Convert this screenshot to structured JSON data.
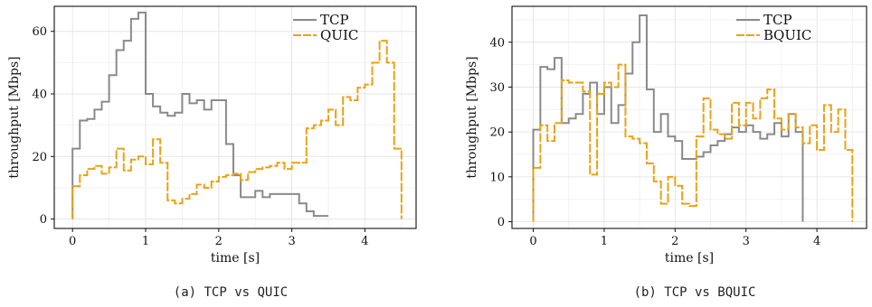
{
  "chart_data": [
    {
      "type": "line",
      "caption": "(a) TCP vs QUIC",
      "xlabel": "time [s]",
      "ylabel": "throughput [Mbps]",
      "xlim": [
        -0.25,
        4.7
      ],
      "ylim": [
        -3,
        68
      ],
      "xticks": [
        0,
        1,
        2,
        3,
        4
      ],
      "yticks": [
        0,
        20,
        40,
        60
      ],
      "grid": true,
      "step": true,
      "legend_position": "top-right",
      "series": [
        {
          "name": "TCP",
          "color": "#8a8a8a",
          "dash": "solid",
          "x": [
            0,
            0.1,
            0.2,
            0.3,
            0.4,
            0.5,
            0.6,
            0.7,
            0.8,
            0.9,
            1.0,
            1.1,
            1.2,
            1.3,
            1.4,
            1.5,
            1.6,
            1.7,
            1.8,
            1.9,
            2.0,
            2.1,
            2.2,
            2.3,
            2.4,
            2.5,
            2.6,
            2.7,
            2.8,
            2.9,
            3.0,
            3.1,
            3.2,
            3.3,
            3.4
          ],
          "y": [
            22.5,
            31.5,
            32,
            35,
            37.5,
            46,
            54,
            57,
            64,
            66,
            40,
            36,
            34,
            33,
            34,
            40,
            37,
            38,
            35,
            38,
            38,
            24,
            14,
            7,
            7,
            9,
            7,
            8,
            8,
            8,
            8,
            5,
            2.5,
            1,
            1
          ]
        },
        {
          "name": "QUIC",
          "color": "#e8a317",
          "dash": "dashed",
          "x": [
            0,
            0.1,
            0.2,
            0.3,
            0.4,
            0.5,
            0.6,
            0.7,
            0.8,
            0.9,
            1.0,
            1.1,
            1.2,
            1.3,
            1.4,
            1.5,
            1.6,
            1.7,
            1.8,
            1.9,
            2.0,
            2.1,
            2.2,
            2.3,
            2.4,
            2.5,
            2.6,
            2.7,
            2.8,
            2.9,
            3.0,
            3.1,
            3.2,
            3.3,
            3.4,
            3.5,
            3.6,
            3.7,
            3.8,
            3.9,
            4.0,
            4.1,
            4.2,
            4.3,
            4.4,
            4.5
          ],
          "y": [
            10.5,
            14,
            16,
            17,
            14.5,
            16.5,
            22.5,
            15.5,
            19,
            20,
            17.5,
            25.5,
            18,
            6,
            5,
            6.5,
            8,
            11,
            10,
            12,
            13.5,
            14,
            14.5,
            12.5,
            15,
            16,
            16.5,
            17,
            18,
            16,
            18,
            18,
            29,
            30,
            31.5,
            35,
            30,
            39,
            38,
            42,
            43,
            50,
            57,
            50,
            22.5,
            0
          ]
        }
      ]
    },
    {
      "type": "line",
      "caption": "(b) TCP vs BQUIC",
      "xlabel": "time [s]",
      "ylabel": "throughput [Mbps]",
      "xlim": [
        -0.3,
        4.7
      ],
      "ylim": [
        -1.5,
        48
      ],
      "xticks": [
        0,
        1,
        2,
        3,
        4
      ],
      "yticks": [
        0,
        10,
        20,
        30,
        40
      ],
      "grid": true,
      "step": true,
      "legend_position": "top-right",
      "series": [
        {
          "name": "TCP",
          "color": "#8a8a8a",
          "dash": "solid",
          "x": [
            0,
            0.1,
            0.2,
            0.3,
            0.4,
            0.5,
            0.6,
            0.7,
            0.8,
            0.9,
            1.0,
            1.1,
            1.2,
            1.3,
            1.4,
            1.5,
            1.6,
            1.7,
            1.8,
            1.9,
            2.0,
            2.1,
            2.2,
            2.3,
            2.4,
            2.5,
            2.6,
            2.7,
            2.8,
            2.9,
            3.0,
            3.1,
            3.2,
            3.3,
            3.4,
            3.5,
            3.6,
            3.7,
            3.8
          ],
          "y": [
            20.5,
            34.5,
            34,
            36.5,
            22,
            23,
            24,
            28.5,
            31,
            24,
            30,
            22,
            26,
            33,
            40,
            46,
            29.5,
            20,
            24,
            19,
            18,
            14,
            14,
            14.5,
            15.5,
            17,
            18,
            19.5,
            21,
            20,
            21.5,
            20,
            18.5,
            19.5,
            22,
            19,
            24,
            20,
            0
          ]
        },
        {
          "name": "BQUIC",
          "color": "#e8a317",
          "dash": "dashed",
          "x": [
            0,
            0.1,
            0.2,
            0.3,
            0.4,
            0.5,
            0.6,
            0.7,
            0.8,
            0.9,
            1.0,
            1.1,
            1.2,
            1.3,
            1.4,
            1.5,
            1.6,
            1.7,
            1.8,
            1.9,
            2.0,
            2.1,
            2.2,
            2.3,
            2.4,
            2.5,
            2.6,
            2.7,
            2.8,
            2.9,
            3.0,
            3.1,
            3.2,
            3.3,
            3.4,
            3.5,
            3.6,
            3.7,
            3.8,
            3.9,
            4.0,
            4.1,
            4.2,
            4.3,
            4.4,
            4.5
          ],
          "y": [
            12,
            21.5,
            18,
            22,
            31.5,
            31,
            31,
            29,
            10.5,
            28.5,
            31,
            30,
            35,
            19,
            18.5,
            17.5,
            13,
            9,
            4,
            10,
            8,
            4,
            3.5,
            19,
            27.5,
            20.5,
            19.5,
            18.5,
            26.5,
            21.5,
            26.5,
            23,
            27.5,
            29.5,
            23,
            20.5,
            24,
            21,
            17.5,
            21.5,
            16,
            26,
            20,
            25,
            16,
            0
          ]
        }
      ]
    }
  ]
}
